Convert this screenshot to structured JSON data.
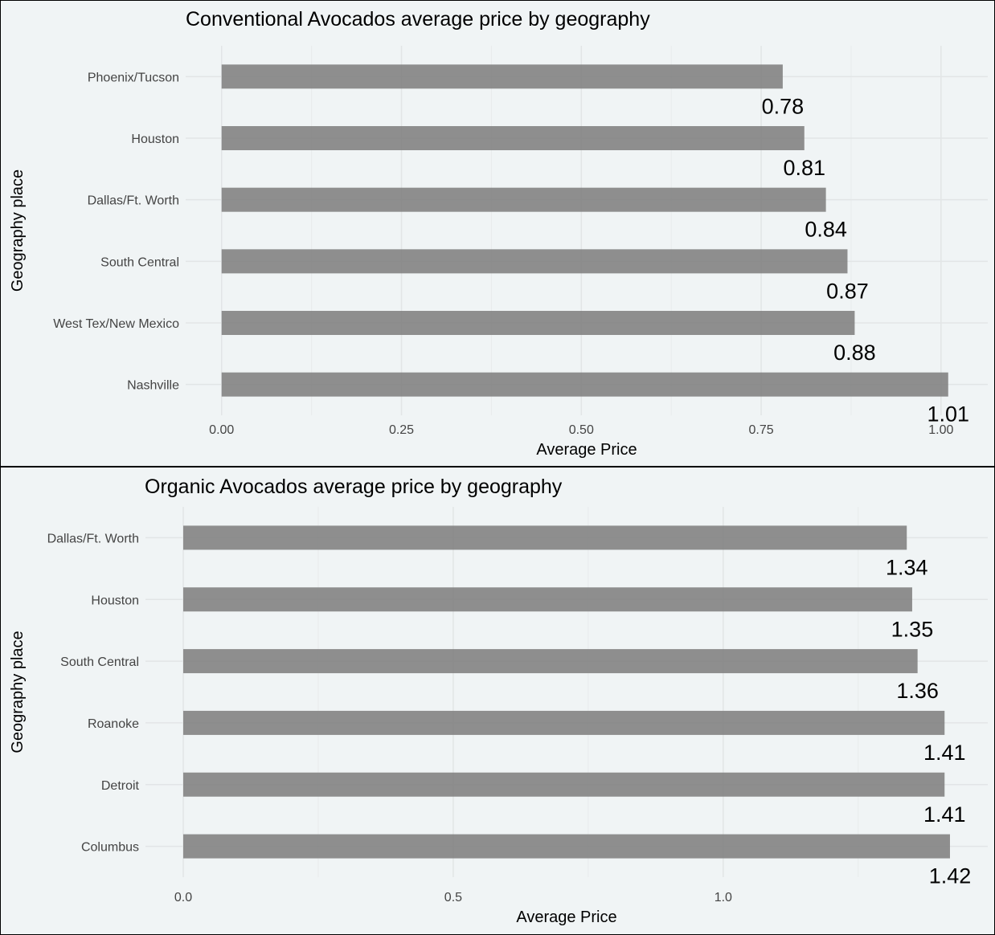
{
  "chart_data": [
    {
      "type": "bar",
      "orientation": "horizontal",
      "title": "Conventional Avocados average price by geography",
      "xlabel": "Average Price",
      "ylabel": "Geography place",
      "categories": [
        "Phoenix/Tucson",
        "Houston",
        "Dallas/Ft. Worth",
        "South Central",
        "West Tex/New Mexico",
        "Nashville"
      ],
      "values": [
        0.78,
        0.81,
        0.84,
        0.87,
        0.88,
        1.01
      ],
      "data_labels": [
        "0.78",
        "0.81",
        "0.84",
        "0.87",
        "0.88",
        "1.01"
      ],
      "xticks": [
        0,
        0.25,
        0.5,
        0.75,
        1.0
      ],
      "xtick_labels": [
        "0.00",
        "0.25",
        "0.50",
        "0.75",
        "1.00"
      ],
      "xlim": [
        -0.05,
        1.065
      ],
      "grid": true,
      "bar_color": "#7f7f7f",
      "background": "#f0f4f5"
    },
    {
      "type": "bar",
      "orientation": "horizontal",
      "title": "Organic Avocados average price by geography",
      "xlabel": "Average Price",
      "ylabel": "Geography place",
      "categories": [
        "Dallas/Ft. Worth",
        "Houston",
        "South Central",
        "Roanoke",
        "Detroit",
        "Columbus"
      ],
      "values": [
        1.34,
        1.35,
        1.36,
        1.41,
        1.41,
        1.42
      ],
      "data_labels": [
        "1.34",
        "1.35",
        "1.36",
        "1.41",
        "1.41",
        "1.42"
      ],
      "xticks": [
        0,
        0.5,
        1.0
      ],
      "xtick_labels": [
        "0.0",
        "0.5",
        "1.0"
      ],
      "xlim": [
        -0.07,
        1.49
      ],
      "grid": true,
      "bar_color": "#7f7f7f",
      "background": "#f0f4f5"
    }
  ]
}
